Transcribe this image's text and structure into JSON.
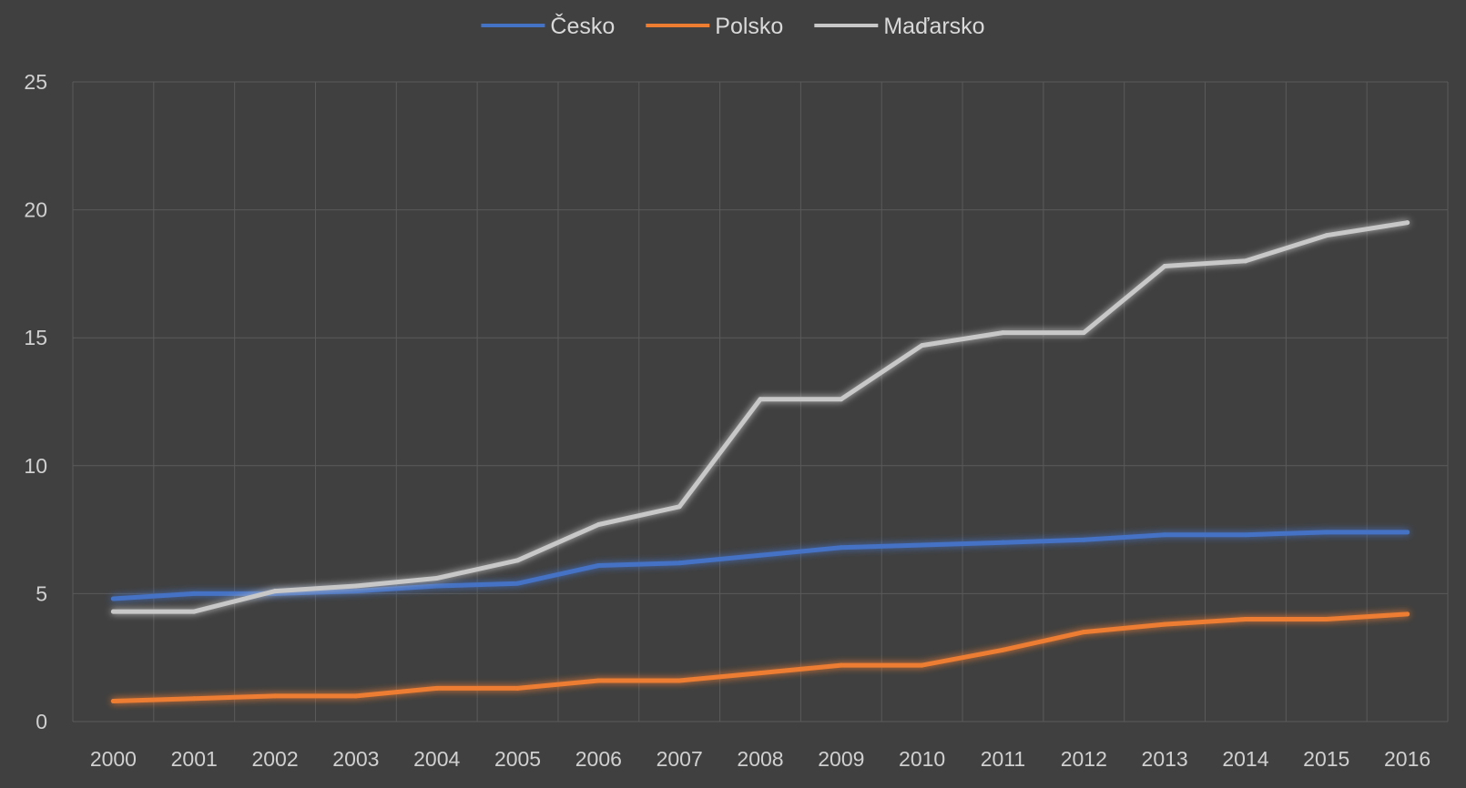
{
  "chart_data": {
    "type": "line",
    "title": "",
    "xlabel": "",
    "ylabel": "",
    "ylim": [
      0,
      25
    ],
    "yticks": [
      0,
      5,
      10,
      15,
      20,
      25
    ],
    "grid": true,
    "legend_position": "top",
    "background": "#404040",
    "categories": [
      "2000",
      "2001",
      "2002",
      "2003",
      "2004",
      "2005",
      "2006",
      "2007",
      "2008",
      "2009",
      "2010",
      "2011",
      "2012",
      "2013",
      "2014",
      "2015",
      "2016"
    ],
    "series": [
      {
        "name": "Česko",
        "color": "#4472c4",
        "values": [
          4.8,
          5.0,
          5.0,
          5.1,
          5.3,
          5.4,
          6.1,
          6.2,
          6.5,
          6.8,
          6.9,
          7.0,
          7.1,
          7.3,
          7.3,
          7.4,
          7.4
        ]
      },
      {
        "name": "Polsko",
        "color": "#ed7d31",
        "values": [
          0.8,
          0.9,
          1.0,
          1.0,
          1.3,
          1.3,
          1.6,
          1.6,
          1.9,
          2.2,
          2.2,
          2.8,
          3.5,
          3.8,
          4.0,
          4.0,
          4.2
        ]
      },
      {
        "name": "Maďarsko",
        "color": "#c8c8c8",
        "values": [
          4.3,
          4.3,
          5.1,
          5.3,
          5.6,
          6.3,
          7.7,
          8.4,
          12.6,
          12.6,
          14.7,
          15.2,
          15.2,
          17.8,
          18.0,
          19.0,
          19.5
        ]
      }
    ]
  }
}
